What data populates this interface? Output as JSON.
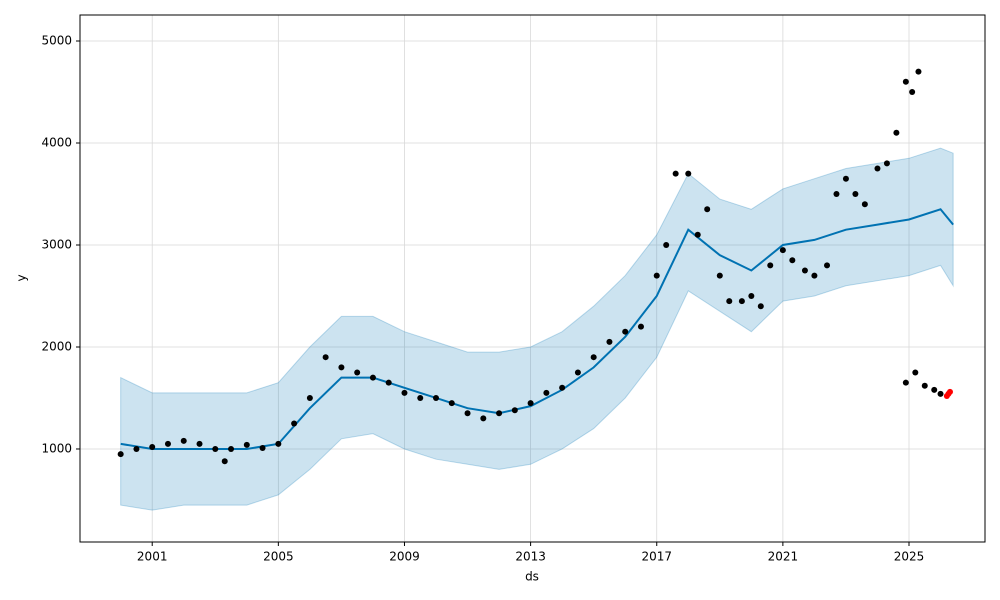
{
  "chart_data": {
    "type": "forecast",
    "xlabel": "ds",
    "ylabel": "y",
    "xlim": [
      1998.71,
      2027.41
    ],
    "ylim": [
      88,
      5255
    ],
    "xticks": [
      2001,
      2005,
      2009,
      2013,
      2017,
      2021,
      2025
    ],
    "yticks": [
      1000,
      2000,
      3000,
      4000,
      5000
    ],
    "grid": true,
    "band": {
      "color": "#0072b2",
      "x": [
        2000,
        2001,
        2002,
        2003,
        2004,
        2005,
        2006,
        2007,
        2008,
        2009,
        2010,
        2011,
        2012,
        2013,
        2014,
        2015,
        2016,
        2017,
        2018,
        2019,
        2020,
        2021,
        2022,
        2023,
        2024,
        2025,
        2026,
        2026.4
      ],
      "lower": [
        450,
        400,
        450,
        450,
        450,
        550,
        800,
        1100,
        1150,
        1000,
        900,
        850,
        800,
        850,
        1000,
        1200,
        1500,
        1900,
        2550,
        2350,
        2150,
        2450,
        2500,
        2600,
        2650,
        2700,
        2800,
        2600
      ],
      "upper": [
        1700,
        1550,
        1550,
        1550,
        1550,
        1650,
        2000,
        2300,
        2300,
        2150,
        2050,
        1950,
        1950,
        2000,
        2150,
        2400,
        2700,
        3100,
        3700,
        3450,
        3350,
        3550,
        3650,
        3750,
        3800,
        3850,
        3950,
        3900
      ]
    },
    "forecast": {
      "color": "#0072b2",
      "x": [
        2000,
        2001,
        2002,
        2003,
        2004,
        2005,
        2006,
        2007,
        2008,
        2009,
        2010,
        2011,
        2012,
        2013,
        2014,
        2015,
        2016,
        2017,
        2018,
        2019,
        2020,
        2021,
        2022,
        2023,
        2024,
        2025,
        2026,
        2026.4
      ],
      "values": [
        1050,
        1000,
        1000,
        1000,
        1000,
        1050,
        1400,
        1700,
        1700,
        1600,
        1500,
        1400,
        1350,
        1420,
        1580,
        1800,
        2100,
        2500,
        3150,
        2900,
        2750,
        3000,
        3050,
        3150,
        3200,
        3250,
        3350,
        3200
      ]
    },
    "observed": {
      "color": "#000000",
      "x": [
        2000.0,
        2000.5,
        2001.0,
        2001.5,
        2002.0,
        2002.5,
        2003.0,
        2003.3,
        2003.5,
        2004.0,
        2004.5,
        2005.0,
        2005.5,
        2006.0,
        2006.5,
        2007.0,
        2007.5,
        2008.0,
        2008.5,
        2009.0,
        2009.5,
        2010.0,
        2010.5,
        2011.0,
        2011.5,
        2012.0,
        2012.5,
        2013.0,
        2013.5,
        2014.0,
        2014.5,
        2015.0,
        2015.5,
        2016.0,
        2016.5,
        2017.0,
        2017.3,
        2017.6,
        2018.0,
        2018.3,
        2018.6,
        2019.0,
        2019.3,
        2019.7,
        2020.0,
        2020.3,
        2020.6,
        2021.0,
        2021.3,
        2021.7,
        2022.0,
        2022.4,
        2022.7,
        2023.0,
        2023.3,
        2023.6,
        2024.0,
        2024.3,
        2024.6,
        2024.9,
        2025.1,
        2025.3,
        2024.9,
        2025.2,
        2025.5,
        2025.8,
        2026.0
      ],
      "values": [
        950,
        1000,
        1020,
        1050,
        1080,
        1050,
        1000,
        880,
        1000,
        1040,
        1010,
        1050,
        1250,
        1500,
        1900,
        1800,
        1750,
        1700,
        1650,
        1550,
        1500,
        1500,
        1450,
        1350,
        1300,
        1350,
        1380,
        1450,
        1550,
        1600,
        1750,
        1900,
        2050,
        2150,
        2200,
        2700,
        3000,
        3700,
        3700,
        3100,
        3350,
        2700,
        2450,
        2450,
        2500,
        2400,
        2800,
        2950,
        2850,
        2750,
        2700,
        2800,
        3500,
        3650,
        3500,
        3400,
        3750,
        3800,
        4100,
        4600,
        4500,
        4700,
        1650,
        1750,
        1620,
        1580,
        1540
      ]
    },
    "highlight": {
      "color": "#ff0000",
      "x": [
        2026.2,
        2026.25,
        2026.3
      ],
      "values": [
        1520,
        1540,
        1560
      ]
    }
  }
}
